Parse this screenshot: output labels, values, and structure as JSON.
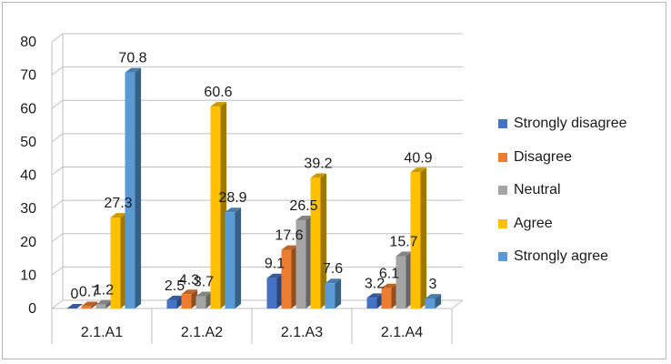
{
  "chart_data": {
    "type": "bar",
    "three_d": true,
    "categories": [
      "2.1.A1",
      "2.1.A2",
      "2.1.A3",
      "2.1.A4"
    ],
    "series": [
      {
        "name": "Strongly disagree",
        "color": "#4472C4",
        "values": [
          0,
          2.5,
          9.1,
          3.2
        ],
        "labels": [
          "0",
          "2.5",
          "9.1",
          "3.2"
        ]
      },
      {
        "name": "Disagree",
        "color": "#ED7D31",
        "values": [
          0.7,
          4.3,
          17.6,
          6.1
        ],
        "labels": [
          "0.7",
          "4.3",
          "17.6",
          "6.1"
        ]
      },
      {
        "name": "Neutral",
        "color": "#A5A5A5",
        "values": [
          1.2,
          3.7,
          26.5,
          15.7
        ],
        "labels": [
          "1.2",
          "3.7",
          "26.5",
          "15.7"
        ]
      },
      {
        "name": "Agree",
        "color": "#FFC000",
        "values": [
          27.3,
          60.6,
          39.2,
          40.9
        ],
        "labels": [
          "27.3",
          "60.6",
          "39.2",
          "40.9"
        ]
      },
      {
        "name": "Strongly agree",
        "color": "#5B9BD5",
        "values": [
          70.8,
          28.9,
          7.6,
          3
        ],
        "labels": [
          "70.8",
          "28.9",
          "7.6",
          "3"
        ]
      }
    ],
    "yticks": [
      "0",
      "10",
      "20",
      "30",
      "40",
      "50",
      "60",
      "70",
      "80"
    ],
    "ylim": [
      0,
      80
    ],
    "grid": true,
    "legend": "right"
  }
}
